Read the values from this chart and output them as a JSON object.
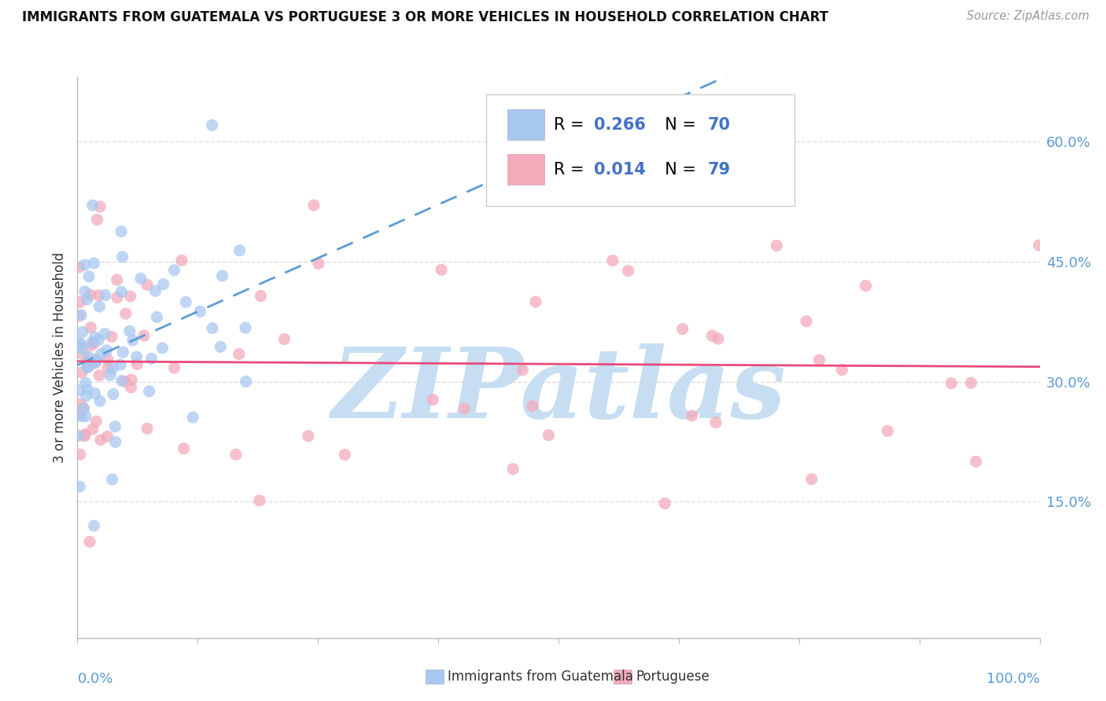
{
  "title": "IMMIGRANTS FROM GUATEMALA VS PORTUGUESE 3 OR MORE VEHICLES IN HOUSEHOLD CORRELATION CHART",
  "source": "Source: ZipAtlas.com",
  "ylabel": "3 or more Vehicles in Household",
  "series1_label": "Immigrants from Guatemala",
  "series1_R": "0.266",
  "series1_N": "70",
  "series1_color": "#A8C8F0",
  "series1_line_color": "#5B9BD5",
  "series2_label": "Portuguese",
  "series2_R": "0.014",
  "series2_N": "79",
  "series2_color": "#F4AABB",
  "series2_line_color": "#E84B7A",
  "watermark_text": "ZIPatlas",
  "watermark_color": [
    0.78,
    0.87,
    0.95
  ],
  "background_color": "#FFFFFF",
  "grid_color": "#DDDDDD",
  "ytick_vals": [
    0.15,
    0.3,
    0.45,
    0.6
  ],
  "ytick_labels": [
    "15.0%",
    "30.0%",
    "45.0%",
    "60.0%"
  ],
  "xlim": [
    0.0,
    1.0
  ],
  "ylim": [
    -0.02,
    0.68
  ],
  "legend_R_color": "#4472C4",
  "legend_N_color": "#4472C4",
  "tick_label_color": "#5B9BD5",
  "title_color": "#111111",
  "source_color": "#999999",
  "axis_label_color": "#333333"
}
